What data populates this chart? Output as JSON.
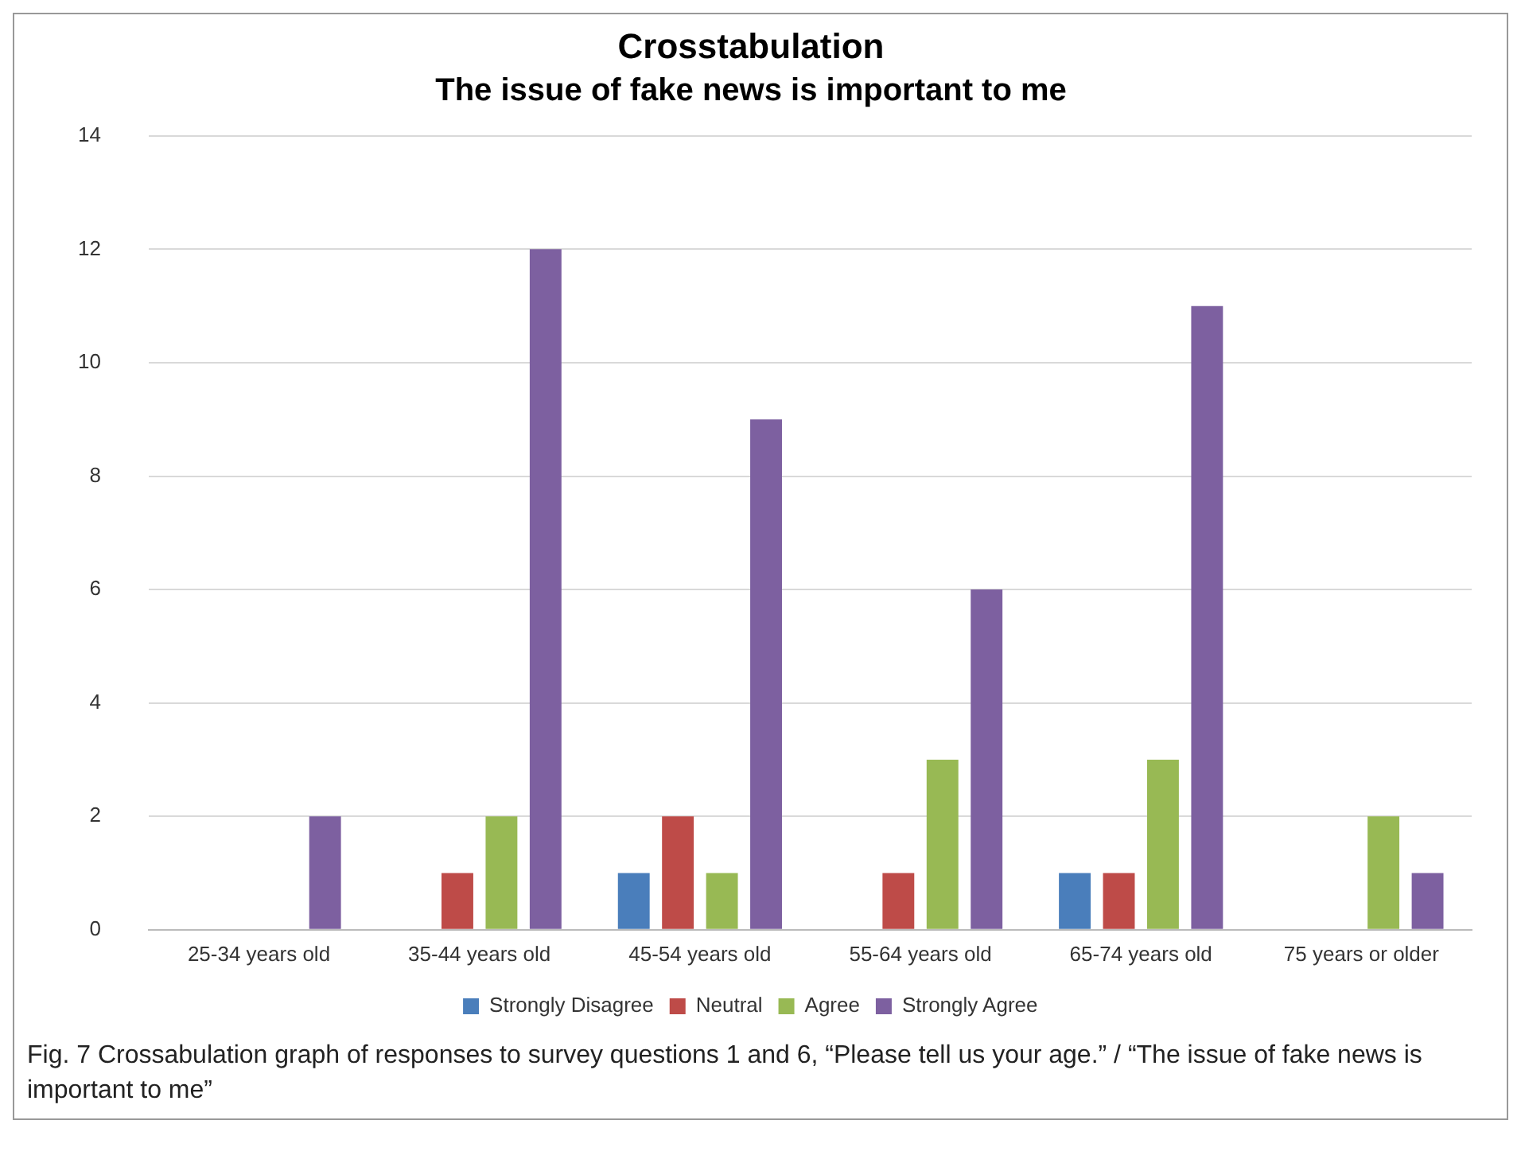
{
  "chart_data": {
    "type": "bar",
    "title": "Crosstabulation",
    "subtitle": "The issue of fake news is important to me",
    "categories": [
      "25-34 years old",
      "35-44 years old",
      "45-54 years old",
      "55-64 years old",
      "65-74 years old",
      "75 years or older"
    ],
    "series": [
      {
        "name": "Strongly Disagree",
        "color": "#4a7ebb",
        "values": [
          0,
          0,
          1,
          0,
          1,
          0
        ]
      },
      {
        "name": "Neutral",
        "color": "#be4b48",
        "values": [
          0,
          1,
          2,
          1,
          1,
          0
        ]
      },
      {
        "name": "Agree",
        "color": "#98b954",
        "values": [
          0,
          2,
          1,
          3,
          3,
          2
        ]
      },
      {
        "name": "Strongly Agree",
        "color": "#7d60a0",
        "values": [
          2,
          12,
          9,
          6,
          11,
          1
        ]
      }
    ],
    "ylim": [
      0,
      14
    ],
    "yticks": [
      0,
      2,
      4,
      6,
      8,
      10,
      12,
      14
    ],
    "grid": "y",
    "legend": "bottom",
    "annotations": [
      "Fig. 7 Crossabulation graph of responses to survey questions 1 and 6, “Please tell us your age.” / “The issue of fake news is important to me”"
    ]
  }
}
